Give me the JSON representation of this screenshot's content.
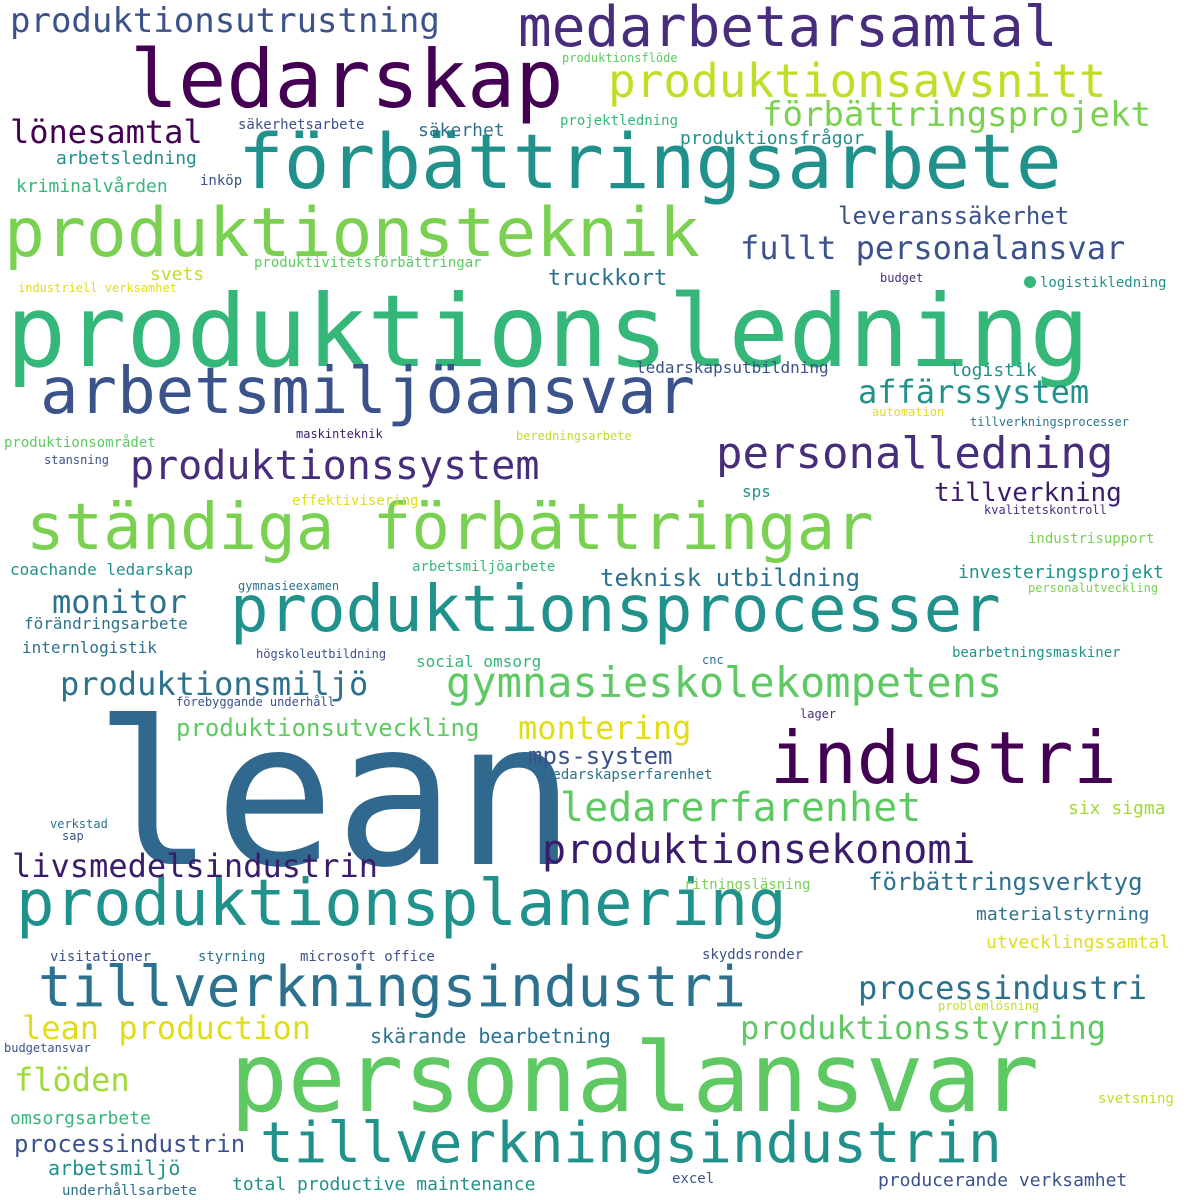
{
  "words": [
    {
      "text": "produktionsledning",
      "color": "#35b779"
    },
    {
      "text": "lean",
      "color": "#31688e"
    },
    {
      "text": "personalansvar",
      "color": "#5ec962"
    },
    {
      "text": "ledarskap",
      "color": "#440154"
    },
    {
      "text": "förbättringsarbete",
      "color": "#21918c"
    },
    {
      "text": "produktionsteknik",
      "color": "#7ad151"
    },
    {
      "text": "arbetsmiljöansvar",
      "color": "#3b528b"
    },
    {
      "text": "ständiga förbättringar",
      "color": "#7ad151"
    },
    {
      "text": "produktionsprocesser",
      "color": "#21918c"
    },
    {
      "text": "produktionsplanering",
      "color": "#21918c"
    },
    {
      "text": "tillverkningsindustri",
      "color": "#2c728e"
    },
    {
      "text": "tillverkningsindustrin",
      "color": "#21918c"
    },
    {
      "text": "industri",
      "color": "#440154"
    },
    {
      "text": "medarbetarsamtal",
      "color": "#472d7b"
    },
    {
      "text": "produktionsavsnitt",
      "color": "#bddf26"
    },
    {
      "text": "gymnasieskolekompetens",
      "color": "#5ec962"
    },
    {
      "text": "produktionssystem",
      "color": "#472d7b"
    },
    {
      "text": "personalledning",
      "color": "#472d7b"
    },
    {
      "text": "produktionsekonomi",
      "color": "#3b1c6b"
    },
    {
      "text": "ledarerfarenhet",
      "color": "#5ec962"
    },
    {
      "text": "produktionsutrustning",
      "color": "#3b528b"
    },
    {
      "text": "förbättringsprojekt",
      "color": "#7ad151"
    },
    {
      "text": "fullt personalansvar",
      "color": "#3b528b"
    },
    {
      "text": "lönesamtal",
      "color": "#440154"
    },
    {
      "text": "livsmedelsindustrin",
      "color": "#3b1c6b"
    },
    {
      "text": "produktionsmiljö",
      "color": "#2c728e"
    },
    {
      "text": "processindustri",
      "color": "#2c728e"
    },
    {
      "text": "produktionsstyrning",
      "color": "#5ec962"
    },
    {
      "text": "lean production",
      "color": "#e1dd16"
    },
    {
      "text": "affärssystem",
      "color": "#21918c"
    },
    {
      "text": "monitor",
      "color": "#2c728e"
    },
    {
      "text": "montering",
      "color": "#e1dd16"
    },
    {
      "text": "flöden",
      "color": "#a0da39"
    },
    {
      "text": "tillverkning",
      "color": "#3b1c6b"
    },
    {
      "text": "teknisk utbildning",
      "color": "#2c728e"
    },
    {
      "text": "leveranssäkerhet",
      "color": "#3b528b"
    },
    {
      "text": "processindustrin",
      "color": "#3b528b"
    },
    {
      "text": "förbättringsverktyg",
      "color": "#2c728e"
    },
    {
      "text": "produktionsutveckling",
      "color": "#5ec962"
    },
    {
      "text": "mps-system",
      "color": "#3b528b"
    },
    {
      "text": "truckkort",
      "color": "#2c728e"
    },
    {
      "text": "skärande bearbetning",
      "color": "#2c728e"
    },
    {
      "text": "arbetsmiljö",
      "color": "#21918c"
    },
    {
      "text": "arbetsledning",
      "color": "#21918c"
    },
    {
      "text": "omsorgsarbete",
      "color": "#35b779"
    },
    {
      "text": "total productive maintenance",
      "color": "#21918c"
    },
    {
      "text": "producerande verksamhet",
      "color": "#3b528b"
    },
    {
      "text": "investeringsprojekt",
      "color": "#21918c"
    },
    {
      "text": "materialstyrning",
      "color": "#2c728e"
    },
    {
      "text": "utvecklingssamtal",
      "color": "#e1dd16"
    },
    {
      "text": "six sigma",
      "color": "#a0da39"
    },
    {
      "text": "logistik",
      "color": "#21918c"
    },
    {
      "text": "svets",
      "color": "#bddf26"
    },
    {
      "text": "säkerhet",
      "color": "#2c728e"
    },
    {
      "text": "produktionsfrågor",
      "color": "#21918c"
    },
    {
      "text": "kriminalvården",
      "color": "#35b779"
    },
    {
      "text": "coachande ledarskap",
      "color": "#21918c"
    },
    {
      "text": "förändringsarbete",
      "color": "#2c728e"
    },
    {
      "text": "internlogistik",
      "color": "#2c728e"
    },
    {
      "text": "social omsorg",
      "color": "#35b779"
    },
    {
      "text": "ledarskapsutbildning",
      "color": "#3b528b"
    },
    {
      "text": "ledarskapserfarenhet",
      "color": "#2c728e"
    },
    {
      "text": "säkerhetsarbete",
      "color": "#3b528b"
    },
    {
      "text": "projektledning",
      "color": "#35b779"
    },
    {
      "text": "inköp",
      "color": "#3b528b"
    },
    {
      "text": "produktivitetsförbättringar",
      "color": "#5ec962"
    },
    {
      "text": "industriell verksamhet",
      "color": "#e1dd16"
    },
    {
      "text": "logistikledning",
      "color": "#21918c"
    },
    {
      "text": "budget",
      "color": "#472d7b"
    },
    {
      "text": "automation",
      "color": "#e1dd16"
    },
    {
      "text": "tillverkningsprocesser",
      "color": "#2c728e"
    },
    {
      "text": "produktionsområdet",
      "color": "#5ec962"
    },
    {
      "text": "maskinteknik",
      "color": "#3b1c6b"
    },
    {
      "text": "beredningsarbete",
      "color": "#bddf26"
    },
    {
      "text": "stansning",
      "color": "#3b528b"
    },
    {
      "text": "effektivisering",
      "color": "#e1dd16"
    },
    {
      "text": "sps",
      "color": "#21918c"
    },
    {
      "text": "kvalitetskontroll",
      "color": "#472d7b"
    },
    {
      "text": "industrisupport",
      "color": "#7ad151"
    },
    {
      "text": "personalutveckling",
      "color": "#7ad151"
    },
    {
      "text": "gymnasieexamen",
      "color": "#2c728e"
    },
    {
      "text": "arbetsmiljöarbete",
      "color": "#35b779"
    },
    {
      "text": "högskoleutbildning",
      "color": "#3b528b"
    },
    {
      "text": "cnc",
      "color": "#2c728e"
    },
    {
      "text": "bearbetningsmaskiner",
      "color": "#21918c"
    },
    {
      "text": "förebyggande underhåll",
      "color": "#3b528b"
    },
    {
      "text": "lager",
      "color": "#472d7b"
    },
    {
      "text": "verkstad",
      "color": "#2c728e"
    },
    {
      "text": "sap",
      "color": "#3b528b"
    },
    {
      "text": "ritningsläsning",
      "color": "#7ad151"
    },
    {
      "text": "visitationer",
      "color": "#3b528b"
    },
    {
      "text": "styrning",
      "color": "#2c728e"
    },
    {
      "text": "microsoft office",
      "color": "#3b528b"
    },
    {
      "text": "skyddsronder",
      "color": "#3b528b"
    },
    {
      "text": "problemlösning",
      "color": "#bddf26"
    },
    {
      "text": "budgetansvar",
      "color": "#3b528b"
    },
    {
      "text": "svetsning",
      "color": "#bddf26"
    },
    {
      "text": "excel",
      "color": "#3b528b"
    },
    {
      "text": "underhållsarbete",
      "color": "#2c728e"
    },
    {
      "text": "produktionsflöde",
      "color": "#5ec962"
    }
  ]
}
